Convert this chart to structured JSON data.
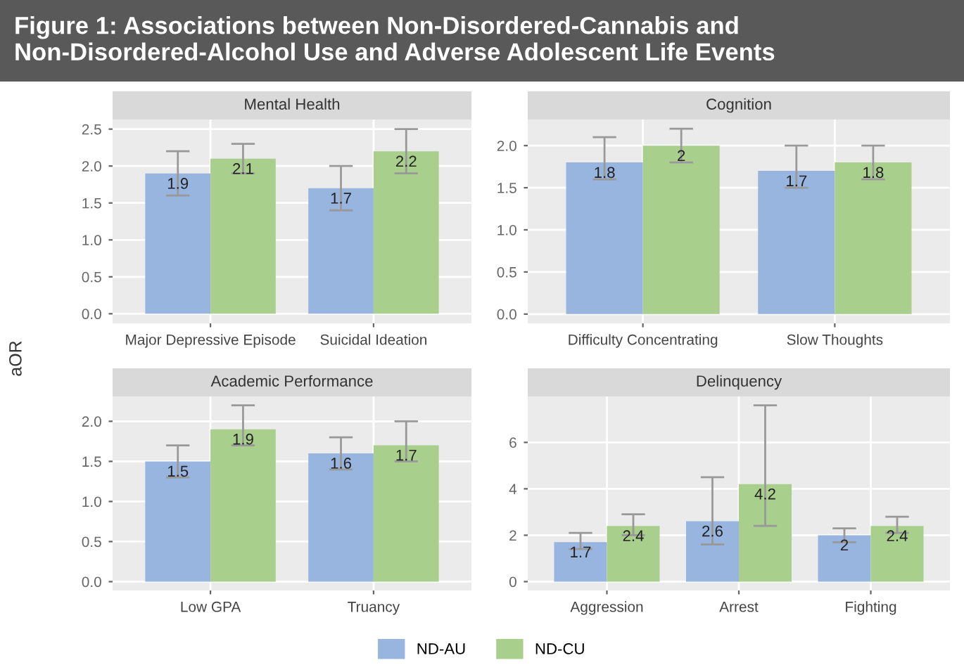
{
  "chart_data": [
    {
      "type": "bar",
      "title": "Mental Health",
      "annotations": [
        "Figure 1: Associations between Non-Disordered-Cannabis and\nNon-Disordered-Alcohol Use and Adverse Adolescent Life Events"
      ],
      "ylabel": "aOR",
      "categories": [
        "Major Depressive Episode",
        "Suicidal Ideation"
      ],
      "series": [
        {
          "name": "ND-AU",
          "color": "#98b5e0",
          "values": [
            1.9,
            1.7
          ],
          "errors": [
            [
              1.6,
              2.2
            ],
            [
              1.4,
              2.0
            ]
          ]
        },
        {
          "name": "ND-CU",
          "color": "#a9cf8c",
          "values": [
            2.1,
            2.2
          ],
          "errors": [
            [
              1.9,
              2.3
            ],
            [
              1.9,
              2.5
            ]
          ]
        }
      ],
      "ylim": [
        -0.13,
        2.63
      ],
      "yticks": [
        {
          "value": 0,
          "label": "0.0"
        },
        0.5,
        {
          "value": 1,
          "label": "1.0"
        },
        1.5,
        {
          "value": 2,
          "label": "2.0"
        },
        2.5
      ],
      "grid": true,
      "data_labels": true,
      "legend": "bottom"
    },
    {
      "type": "bar",
      "title": "Cognition",
      "categories": [
        "Difficulty Concentrating",
        "Slow Thoughts"
      ],
      "series": [
        {
          "color": "#98b5e0",
          "values": [
            1.8,
            1.7
          ],
          "errors": [
            [
              1.6,
              2.1
            ],
            [
              1.5,
              2.0
            ]
          ]
        },
        {
          "color": "#a9cf8c",
          "values": [
            2,
            1.8
          ],
          "errors": [
            [
              1.8,
              2.2
            ],
            [
              1.6,
              2.0
            ]
          ]
        }
      ],
      "ylim": [
        -0.11,
        2.31
      ],
      "yticks": [
        {
          "value": 0,
          "label": "0.0"
        },
        0.5,
        {
          "value": 1,
          "label": "1.0"
        },
        1.5,
        {
          "value": 2,
          "label": "2.0"
        }
      ],
      "grid": true,
      "data_labels": true
    },
    {
      "type": "bar",
      "title": "Academic Performance",
      "categories": [
        "Low GPA",
        "Truancy"
      ],
      "series": [
        {
          "color": "#98b5e0",
          "values": [
            1.5,
            1.6
          ],
          "errors": [
            [
              1.3,
              1.7
            ],
            [
              1.4,
              1.8
            ]
          ]
        },
        {
          "color": "#a9cf8c",
          "values": [
            1.9,
            1.7
          ],
          "errors": [
            [
              1.7,
              2.2
            ],
            [
              1.5,
              2.0
            ]
          ]
        }
      ],
      "ylim": [
        -0.11,
        2.31
      ],
      "yticks": [
        {
          "value": 0,
          "label": "0.0"
        },
        0.5,
        {
          "value": 1,
          "label": "1.0"
        },
        1.5,
        {
          "value": 2,
          "label": "2.0"
        }
      ],
      "grid": true,
      "data_labels": true
    },
    {
      "type": "bar",
      "title": "Delinquency",
      "categories": [
        "Aggression",
        "Arrest",
        "Fighting"
      ],
      "series": [
        {
          "color": "#98b5e0",
          "values": [
            1.7,
            2.6,
            2
          ],
          "errors": [
            [
              1.4,
              2.1
            ],
            [
              1.6,
              4.5
            ],
            [
              1.7,
              2.3
            ]
          ]
        },
        {
          "color": "#a9cf8c",
          "values": [
            2.4,
            4.2,
            2.4
          ],
          "errors": [
            [
              2.0,
              2.9
            ],
            [
              2.4,
              7.6
            ],
            [
              2.1,
              2.8
            ]
          ]
        }
      ],
      "ylim": [
        -0.38,
        7.98
      ],
      "yticks": [
        0,
        2,
        4,
        6
      ],
      "grid": true,
      "data_labels": true
    }
  ]
}
